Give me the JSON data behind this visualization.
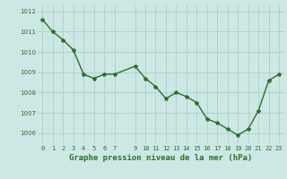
{
  "x": [
    0,
    1,
    2,
    3,
    4,
    5,
    6,
    7,
    9,
    10,
    11,
    12,
    13,
    14,
    15,
    16,
    17,
    18,
    19,
    20,
    21,
    22,
    23
  ],
  "y": [
    1011.6,
    1011.0,
    1010.6,
    1010.1,
    1008.9,
    1008.7,
    1008.9,
    1008.9,
    1009.3,
    1008.7,
    1008.3,
    1007.7,
    1008.0,
    1007.8,
    1007.5,
    1006.7,
    1006.5,
    1006.2,
    1005.9,
    1006.2,
    1007.1,
    1008.6,
    1008.9
  ],
  "line_color": "#2d6e2d",
  "marker": "*",
  "marker_color": "#2d6e2d",
  "bg_color": "#cde8e4",
  "grid_color": "#aacfcb",
  "xlabel": "Graphe pression niveau de la mer (hPa)",
  "xlabel_color": "#2d6e2d",
  "tick_color": "#2d6e2d",
  "ylim": [
    1005.5,
    1012.3
  ],
  "yticks": [
    1006,
    1007,
    1008,
    1009,
    1010,
    1011,
    1012
  ],
  "linewidth": 1.0,
  "markersize": 3.0,
  "tick_fontsize": 5.0,
  "xlabel_fontsize": 6.5
}
